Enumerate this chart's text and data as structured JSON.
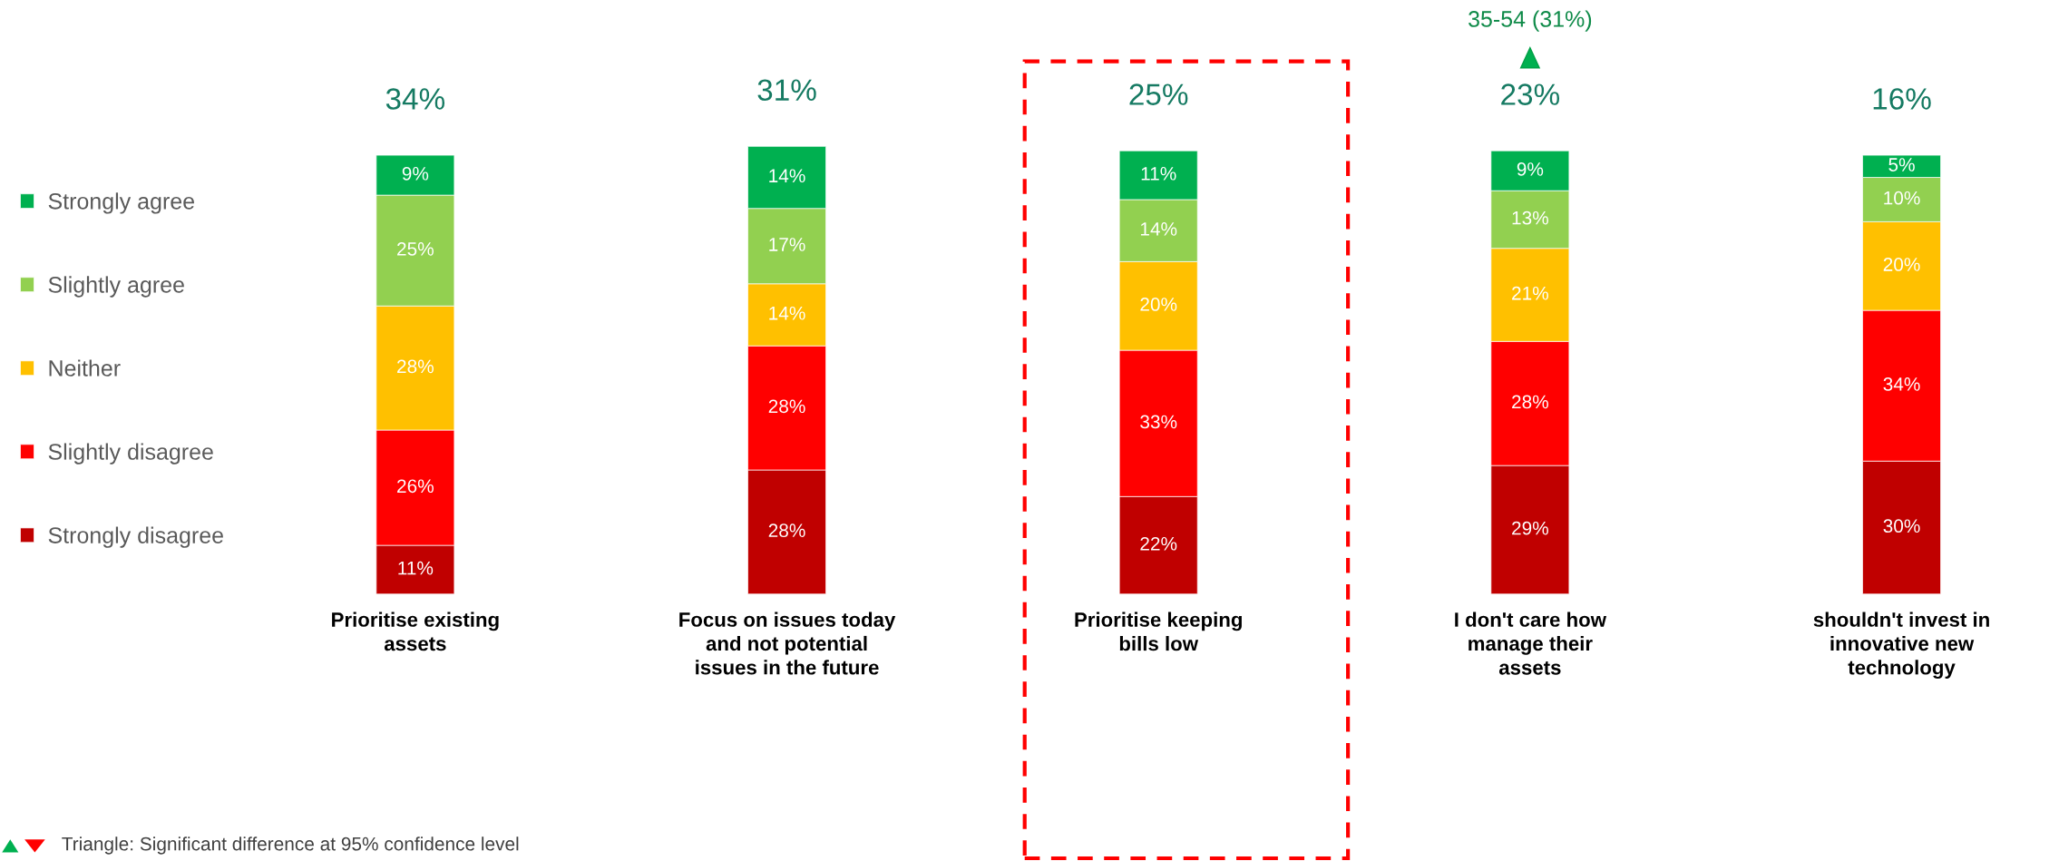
{
  "chart_data": {
    "type": "bar",
    "stacked": true,
    "legend": "left",
    "categories": [
      "Prioritise existing\nassets",
      "Focus on issues today\nand not potential\nissues in the future",
      "Prioritise keeping\nbills low",
      "I don't care how\nmanage their\nassets",
      "shouldn't invest in\ninnovative new\ntechnology"
    ],
    "series": [
      {
        "name": "Strongly disagree",
        "color": "#c00000",
        "values": [
          11,
          28,
          22,
          29,
          30
        ],
        "value_labels": [
          "11%",
          "28%",
          "22%",
          "29%",
          "30%"
        ]
      },
      {
        "name": "Slightly disagree",
        "color": "#ff0000",
        "values": [
          26,
          28,
          33,
          28,
          34
        ],
        "value_labels": [
          "26%",
          "28%",
          "33%",
          "28%",
          "34%"
        ]
      },
      {
        "name": "Neither",
        "color": "#ffc000",
        "values": [
          28,
          14,
          20,
          21,
          20
        ],
        "value_labels": [
          "28%",
          "14%",
          "20%",
          "21%",
          "20%"
        ]
      },
      {
        "name": "Slightly agree",
        "color": "#92d050",
        "values": [
          25,
          17,
          14,
          13,
          10
        ],
        "value_labels": [
          "25%",
          "17%",
          "14%",
          "13%",
          "10%"
        ]
      },
      {
        "name": "Strongly agree",
        "color": "#00b050",
        "values": [
          9,
          14,
          11,
          9,
          5
        ],
        "value_labels": [
          "9%",
          "14%",
          "11%",
          "9%",
          "5%"
        ]
      }
    ],
    "annotations": [
      "34%",
      "31%",
      "25%",
      "23%",
      "16%",
      "35-54 (31%)",
      "Triangle: Significant difference at 95% confidence level"
    ]
  }
}
